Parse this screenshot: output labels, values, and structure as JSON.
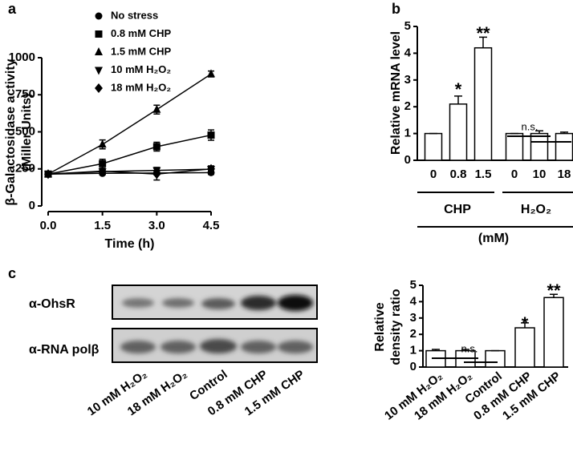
{
  "chart_data": [
    {
      "type": "line",
      "panel": "a",
      "ylabel": [
        "β-Galactosidase activity",
        "(Miller Units)"
      ],
      "xlabel": "Time (h)",
      "x": [
        0,
        1.5,
        3,
        4.5
      ],
      "xlim": [
        0,
        4.5
      ],
      "xticks": [
        {
          "value": 0,
          "label": "0.0"
        },
        1.5,
        {
          "value": 3,
          "label": "3.0"
        },
        4.5
      ],
      "ylim": [
        0,
        1000
      ],
      "yticks": [
        0,
        250,
        500,
        750,
        1000
      ],
      "series": [
        {
          "name": "No stress",
          "color": "#000000",
          "marker": "circle",
          "values": [
            215,
            220,
            222,
            225
          ],
          "errors": [
            8,
            10,
            12,
            12
          ]
        },
        {
          "name": "0.8 mM CHP",
          "color": "#000000",
          "marker": "square",
          "values": [
            215,
            285,
            400,
            478
          ],
          "errors": [
            10,
            30,
            30,
            35
          ]
        },
        {
          "name": "1.5 mM CHP",
          "color": "#000000",
          "marker": "triangle-up",
          "values": [
            215,
            415,
            650,
            890
          ],
          "errors": [
            10,
            30,
            30,
            20
          ]
        },
        {
          "name": "10 mM H₂O₂",
          "color": "#000000",
          "marker": "triangle-down",
          "values": [
            215,
            232,
            240,
            248
          ],
          "errors": [
            8,
            15,
            20,
            20
          ]
        },
        {
          "name": "18 mM H₂O₂",
          "color": "#000000",
          "marker": "diamond",
          "values": [
            215,
            235,
            215,
            250
          ],
          "errors": [
            8,
            12,
            40,
            20
          ]
        }
      ]
    },
    {
      "type": "bar",
      "panel": "b",
      "ylabel": "Relative  mRNA level",
      "categories": [
        "0",
        "0.8",
        "1.5",
        "0",
        "10",
        "18"
      ],
      "values": [
        1,
        2.1,
        4.2,
        1,
        1,
        1
      ],
      "errors": [
        0,
        0.3,
        0.4,
        0,
        0.1,
        0.05
      ],
      "color": "#ffffff",
      "ylim": [
        0,
        5
      ],
      "yticks": [
        0,
        1,
        2,
        3,
        4,
        5
      ],
      "group_labels": [
        "CHP",
        "H₂O₂"
      ],
      "unit_label": "(mM)",
      "annotations": [
        "*",
        "**",
        "n.s."
      ]
    },
    {
      "type": "bar",
      "panel": "c",
      "ylabel": [
        "Relative",
        "density ratio"
      ],
      "categories": [
        "10 mM H₂O₂",
        "18 mM H₂O₂",
        "Control",
        "0.8 mM CHP",
        "1.5 mM CHP"
      ],
      "values": [
        1,
        1,
        1,
        2.4,
        4.25
      ],
      "errors": [
        0.08,
        0.08,
        0,
        0.3,
        0.2
      ],
      "color": "#ffffff",
      "ylim": [
        0,
        5
      ],
      "yticks": [
        0,
        1,
        2,
        3,
        4,
        5
      ],
      "annotations": [
        "n.s.",
        "*",
        "**"
      ]
    }
  ],
  "blot": {
    "rows": [
      "α-OhsR",
      "α-RNA polβ"
    ],
    "lanes": [
      "10 mM H₂O₂",
      "18 mM H₂O₂",
      "Control",
      "0.8 mM CHP",
      "1.5 mM CHP"
    ]
  }
}
